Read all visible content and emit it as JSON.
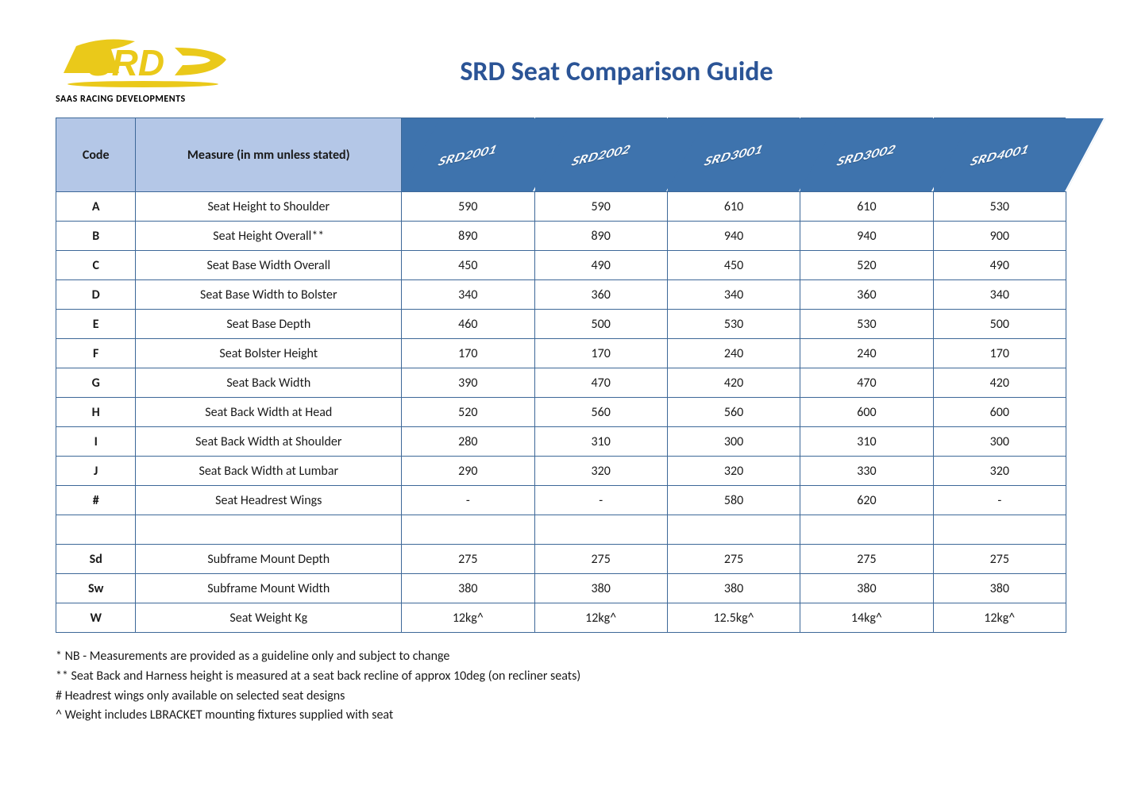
{
  "brand": {
    "logo_text": "SRD",
    "logo_color": "#eac91a",
    "tagline": "SAAS RACING DEVELOPMENTS"
  },
  "title": "SRD Seat Comparison Guide",
  "table": {
    "header_code": "Code",
    "header_measure": "Measure (in mm unless stated)",
    "products": [
      "SRD2001",
      "SRD2002",
      "SRD3001",
      "SRD3002",
      "SRD4001"
    ],
    "product_header_bg": "#3e73ad",
    "product_header_fg": "#ffffff",
    "header_bg": "#b4c7e7",
    "border_color": "#3d6898",
    "rows": [
      {
        "code": "A",
        "measure": "Seat Height to Shoulder",
        "values": [
          "590",
          "590",
          "610",
          "610",
          "530"
        ]
      },
      {
        "code": "B",
        "measure": "Seat Height Overall**",
        "values": [
          "890",
          "890",
          "940",
          "940",
          "900"
        ]
      },
      {
        "code": "C",
        "measure": "Seat Base Width Overall",
        "values": [
          "450",
          "490",
          "450",
          "520",
          "490"
        ]
      },
      {
        "code": "D",
        "measure": "Seat Base Width to Bolster",
        "values": [
          "340",
          "360",
          "340",
          "360",
          "340"
        ]
      },
      {
        "code": "E",
        "measure": "Seat Base Depth",
        "values": [
          "460",
          "500",
          "530",
          "530",
          "500"
        ]
      },
      {
        "code": "F",
        "measure": "Seat Bolster Height",
        "values": [
          "170",
          "170",
          "240",
          "240",
          "170"
        ]
      },
      {
        "code": "G",
        "measure": "Seat Back Width",
        "values": [
          "390",
          "470",
          "420",
          "470",
          "420"
        ]
      },
      {
        "code": "H",
        "measure": "Seat Back Width at Head",
        "values": [
          "520",
          "560",
          "560",
          "600",
          "600"
        ]
      },
      {
        "code": "I",
        "measure": "Seat Back Width at Shoulder",
        "values": [
          "280",
          "310",
          "300",
          "310",
          "300"
        ]
      },
      {
        "code": "J",
        "measure": "Seat Back Width at Lumbar",
        "values": [
          "290",
          "320",
          "320",
          "330",
          "320"
        ]
      },
      {
        "code": "#",
        "measure": "Seat Headrest Wings",
        "values": [
          "-",
          "-",
          "580",
          "620",
          "-"
        ]
      },
      {
        "code": "",
        "measure": "",
        "values": [
          "",
          "",
          "",
          "",
          ""
        ]
      },
      {
        "code": "Sd",
        "measure": "Subframe Mount Depth",
        "values": [
          "275",
          "275",
          "275",
          "275",
          "275"
        ]
      },
      {
        "code": "Sw",
        "measure": "Subframe Mount Width",
        "values": [
          "380",
          "380",
          "380",
          "380",
          "380"
        ]
      },
      {
        "code": "W",
        "measure": "Seat Weight Kg",
        "values": [
          "12kg^",
          "12kg^",
          "12.5kg^",
          "14kg^",
          "12kg^"
        ]
      }
    ]
  },
  "footnotes": [
    "* NB - Measurements are provided as a guideline only and subject to change",
    "** Seat Back and Harness height is measured at a seat back recline of approx 10deg (on recliner seats)",
    "# Headrest wings only available on selected seat designs",
    "^ Weight includes LBRACKET mounting fixtures supplied with seat"
  ]
}
